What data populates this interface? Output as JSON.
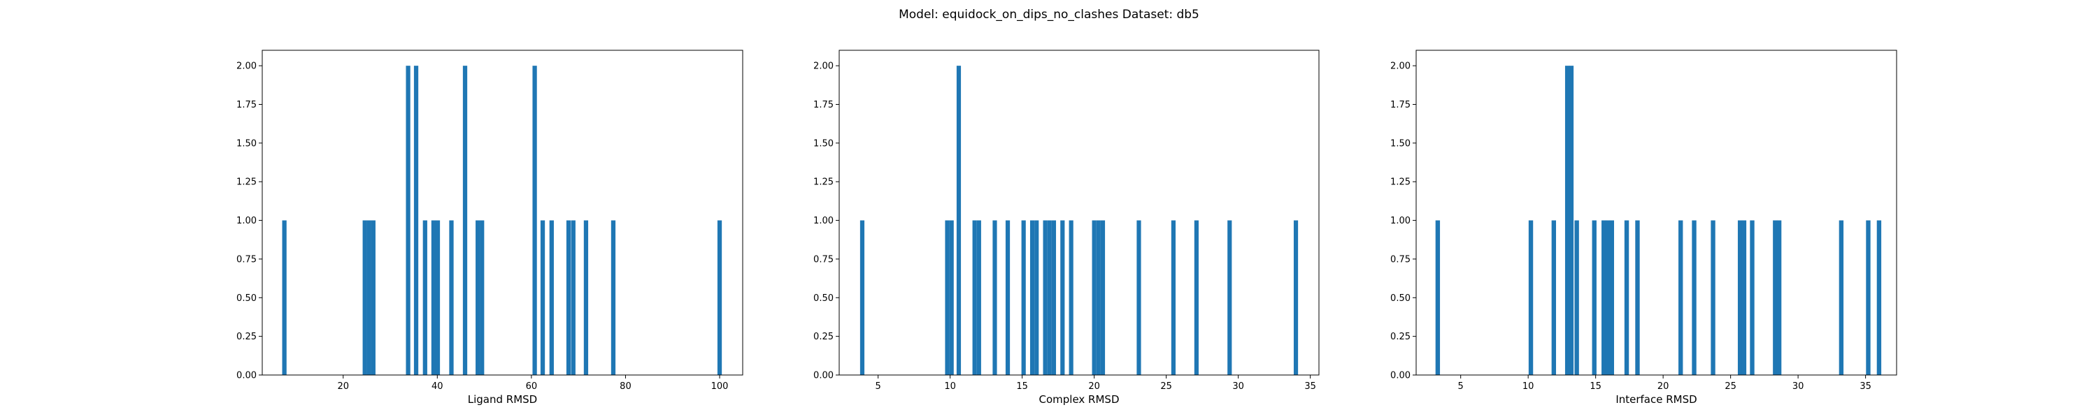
{
  "figure": {
    "title": "Model: equidock_on_dips_no_clashes Dataset: db5",
    "bar_color": "#1f77b4"
  },
  "chart_data": [
    {
      "type": "bar",
      "xlabel": "Ligand RMSD",
      "ylabel": "",
      "xlim": [
        2.8,
        104.9
      ],
      "ylim": [
        0,
        2.1
      ],
      "xticks": [
        20,
        40,
        60,
        80,
        100
      ],
      "xtick_labels": [
        "20",
        "40",
        "60",
        "80",
        "100"
      ],
      "yticks": [
        0,
        0.25,
        0.5,
        0.75,
        1.0,
        1.25,
        1.5,
        1.75,
        2.0
      ],
      "ytick_labels": [
        "0.00",
        "0.25",
        "0.50",
        "0.75",
        "1.00",
        "1.25",
        "1.50",
        "1.75",
        "2.00"
      ],
      "bin_width": 0.93,
      "bins": [
        {
          "x": 7.5,
          "count": 1
        },
        {
          "x": 24.6,
          "count": 1
        },
        {
          "x": 25.5,
          "count": 1
        },
        {
          "x": 26.4,
          "count": 1
        },
        {
          "x": 33.8,
          "count": 2
        },
        {
          "x": 35.5,
          "count": 2
        },
        {
          "x": 37.4,
          "count": 1
        },
        {
          "x": 39.2,
          "count": 1
        },
        {
          "x": 40.1,
          "count": 1
        },
        {
          "x": 43.0,
          "count": 1
        },
        {
          "x": 45.9,
          "count": 2
        },
        {
          "x": 48.6,
          "count": 1
        },
        {
          "x": 49.5,
          "count": 1
        },
        {
          "x": 60.7,
          "count": 2
        },
        {
          "x": 62.4,
          "count": 1
        },
        {
          "x": 64.3,
          "count": 1
        },
        {
          "x": 67.9,
          "count": 1
        },
        {
          "x": 68.9,
          "count": 1
        },
        {
          "x": 71.6,
          "count": 1
        },
        {
          "x": 77.4,
          "count": 1
        },
        {
          "x": 100.0,
          "count": 1
        }
      ]
    },
    {
      "type": "bar",
      "xlabel": "Complex RMSD",
      "ylabel": "",
      "xlim": [
        2.3,
        35.6
      ],
      "ylim": [
        0,
        2.1
      ],
      "xticks": [
        5,
        10,
        15,
        20,
        25,
        30,
        35
      ],
      "xtick_labels": [
        "5",
        "10",
        "15",
        "20",
        "25",
        "30",
        "35"
      ],
      "yticks": [
        0,
        0.25,
        0.5,
        0.75,
        1.0,
        1.25,
        1.5,
        1.75,
        2.0
      ],
      "ytick_labels": [
        "0.00",
        "0.25",
        "0.50",
        "0.75",
        "1.00",
        "1.25",
        "1.50",
        "1.75",
        "2.00"
      ],
      "bin_width": 0.3,
      "bins": [
        {
          "x": 3.9,
          "count": 1
        },
        {
          "x": 9.8,
          "count": 1
        },
        {
          "x": 10.1,
          "count": 1
        },
        {
          "x": 10.6,
          "count": 2
        },
        {
          "x": 11.7,
          "count": 1
        },
        {
          "x": 12.0,
          "count": 1
        },
        {
          "x": 13.1,
          "count": 1
        },
        {
          "x": 14.0,
          "count": 1
        },
        {
          "x": 15.1,
          "count": 1
        },
        {
          "x": 15.7,
          "count": 1
        },
        {
          "x": 16.0,
          "count": 1
        },
        {
          "x": 16.6,
          "count": 1
        },
        {
          "x": 16.9,
          "count": 1
        },
        {
          "x": 17.2,
          "count": 1
        },
        {
          "x": 17.8,
          "count": 1
        },
        {
          "x": 18.4,
          "count": 1
        },
        {
          "x": 20.0,
          "count": 1
        },
        {
          "x": 20.3,
          "count": 1
        },
        {
          "x": 20.6,
          "count": 1
        },
        {
          "x": 23.1,
          "count": 1
        },
        {
          "x": 25.5,
          "count": 1
        },
        {
          "x": 27.1,
          "count": 1
        },
        {
          "x": 29.4,
          "count": 1
        },
        {
          "x": 34.0,
          "count": 1
        }
      ]
    },
    {
      "type": "bar",
      "xlabel": "Interface RMSD",
      "ylabel": "",
      "xlim": [
        1.7,
        37.3
      ],
      "ylim": [
        0,
        2.1
      ],
      "xticks": [
        5,
        10,
        15,
        20,
        25,
        30,
        35
      ],
      "xtick_labels": [
        "5",
        "10",
        "15",
        "20",
        "25",
        "30",
        "35"
      ],
      "yticks": [
        0,
        0.25,
        0.5,
        0.75,
        1.0,
        1.25,
        1.5,
        1.75,
        2.0
      ],
      "ytick_labels": [
        "0.00",
        "0.25",
        "0.50",
        "0.75",
        "1.00",
        "1.25",
        "1.50",
        "1.75",
        "2.00"
      ],
      "bin_width": 0.33,
      "bins": [
        {
          "x": 3.3,
          "count": 1
        },
        {
          "x": 10.2,
          "count": 1
        },
        {
          "x": 11.9,
          "count": 1
        },
        {
          "x": 12.9,
          "count": 2
        },
        {
          "x": 13.2,
          "count": 2
        },
        {
          "x": 13.6,
          "count": 1
        },
        {
          "x": 14.9,
          "count": 1
        },
        {
          "x": 15.6,
          "count": 1
        },
        {
          "x": 15.9,
          "count": 1
        },
        {
          "x": 16.2,
          "count": 1
        },
        {
          "x": 17.3,
          "count": 1
        },
        {
          "x": 18.1,
          "count": 1
        },
        {
          "x": 21.3,
          "count": 1
        },
        {
          "x": 22.3,
          "count": 1
        },
        {
          "x": 23.7,
          "count": 1
        },
        {
          "x": 25.7,
          "count": 1
        },
        {
          "x": 26.0,
          "count": 1
        },
        {
          "x": 26.6,
          "count": 1
        },
        {
          "x": 28.3,
          "count": 1
        },
        {
          "x": 28.6,
          "count": 1
        },
        {
          "x": 33.2,
          "count": 1
        },
        {
          "x": 35.2,
          "count": 1
        },
        {
          "x": 36.0,
          "count": 1
        }
      ]
    }
  ]
}
